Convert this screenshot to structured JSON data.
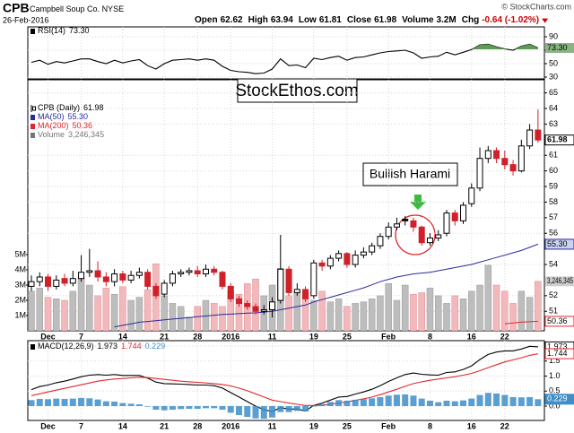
{
  "header": {
    "symbol": "CPB",
    "name": "Campbell Soup Co.",
    "exchange": "NYSE",
    "date": "26-Feb-2016",
    "credit": "© StockCharts.com",
    "quote": [
      {
        "label": "Open",
        "value": 62.62
      },
      {
        "label": "High",
        "value": 63.94
      },
      {
        "label": "Low",
        "value": 61.81
      },
      {
        "label": "Close",
        "value": 61.98
      },
      {
        "label": "Volume",
        "value": 3200000,
        "value_label": "3.2M"
      },
      {
        "label": "Chg",
        "value": -0.64,
        "value_label": "-0.64 (-1.02%)"
      }
    ]
  },
  "chart_data": [
    {
      "type": "line",
      "ylim": [
        27.33,
        104.67
      ],
      "yticks": [
        90,
        70,
        50,
        30
      ],
      "grid": true,
      "series": [
        {
          "name": "RSI(14)",
          "color": "#000000",
          "fill_color": "#5c9a55",
          "last_value_label": "73.30",
          "values": [
            52,
            55,
            49,
            53,
            51,
            54,
            57,
            57,
            53,
            50,
            55,
            51,
            54,
            56,
            47,
            42,
            50,
            55,
            56,
            57,
            55,
            57,
            55,
            46,
            40,
            38,
            37,
            35,
            36,
            42,
            57,
            47,
            48,
            44,
            58,
            56,
            59,
            61,
            55,
            59,
            60,
            63,
            66,
            68,
            69,
            70,
            66,
            58,
            60,
            61,
            67,
            63,
            67,
            71,
            78,
            79,
            75,
            72,
            70,
            76,
            79,
            73.3
          ]
        }
      ]
    },
    {
      "type": "candlestick",
      "name": "CPB (Daily)",
      "ylim": [
        49.75,
        65.84
      ],
      "yticks": [
        65,
        64,
        63,
        61,
        60,
        59,
        58,
        57,
        56,
        54,
        52,
        51
      ],
      "grid": true,
      "categories": [
        null,
        null,
        "Dec",
        null,
        null,
        null,
        "7",
        null,
        null,
        null,
        null,
        "14",
        null,
        null,
        null,
        null,
        "21",
        null,
        null,
        null,
        "28",
        null,
        null,
        null,
        "2016",
        null,
        null,
        null,
        null,
        "11",
        null,
        null,
        null,
        null,
        "19",
        null,
        null,
        null,
        "25",
        null,
        null,
        null,
        null,
        "Feb",
        null,
        null,
        null,
        null,
        "8",
        null,
        null,
        null,
        null,
        "16",
        null,
        null,
        null,
        "22",
        null,
        null,
        null,
        null
      ],
      "open": [
        52.6,
        52.9,
        53.2,
        52.6,
        53.1,
        52.8,
        53.1,
        53.5,
        53.6,
        53.2,
        52.9,
        53.4,
        53.0,
        53.3,
        53.5,
        52.6,
        52.1,
        52.8,
        53.4,
        53.5,
        53.6,
        53.4,
        53.7,
        53.5,
        52.6,
        51.8,
        51.5,
        51.3,
        51.0,
        51.1,
        51.7,
        53.7,
        52.2,
        52.4,
        52.0,
        54.1,
        53.9,
        54.4,
        54.7,
        54.0,
        54.6,
        54.8,
        55.2,
        55.8,
        56.4,
        56.9,
        56.8,
        56.4,
        55.4,
        55.7,
        56.0,
        57.3,
        56.8,
        57.9,
        58.9,
        60.8,
        61.3,
        60.8,
        60.4,
        60.0,
        61.6,
        62.62
      ],
      "high": [
        53.3,
        53.5,
        53.4,
        53.3,
        53.4,
        53.6,
        54.6,
        55.0,
        54.2,
        53.5,
        53.7,
        53.6,
        53.6,
        53.8,
        53.7,
        52.8,
        53.0,
        53.6,
        53.7,
        53.8,
        53.9,
        54.0,
        53.9,
        53.6,
        52.8,
        52.0,
        51.7,
        51.5,
        51.4,
        51.9,
        55.9,
        53.9,
        52.8,
        52.6,
        54.3,
        54.3,
        54.6,
        54.9,
        54.8,
        54.9,
        55.1,
        55.4,
        56.0,
        56.7,
        57.0,
        57.1,
        57.0,
        56.5,
        56.0,
        56.2,
        57.5,
        57.5,
        58.0,
        59.2,
        61.5,
        61.6,
        61.5,
        61.3,
        60.7,
        62.0,
        63.0,
        63.94
      ],
      "low": [
        52.3,
        52.6,
        52.3,
        52.4,
        52.6,
        52.6,
        52.9,
        53.2,
        52.9,
        52.6,
        52.6,
        52.8,
        52.8,
        53.1,
        52.4,
        51.8,
        51.9,
        52.6,
        53.2,
        53.3,
        53.2,
        53.2,
        53.3,
        52.4,
        51.6,
        51.3,
        51.1,
        50.8,
        50.8,
        50.6,
        51.5,
        52.0,
        52.0,
        51.6,
        51.8,
        53.6,
        53.7,
        54.2,
        53.8,
        53.8,
        54.4,
        54.6,
        55.0,
        55.6,
        56.2,
        56.5,
        56.1,
        55.2,
        55.2,
        55.5,
        55.8,
        56.5,
        56.6,
        57.7,
        58.7,
        60.5,
        60.5,
        60.1,
        59.7,
        59.9,
        61.4,
        61.81
      ],
      "close": [
        52.9,
        53.2,
        52.6,
        53.0,
        52.8,
        53.1,
        53.5,
        53.6,
        53.2,
        52.9,
        53.4,
        53.0,
        53.3,
        53.5,
        52.6,
        52.0,
        52.8,
        53.4,
        53.5,
        53.6,
        53.4,
        53.7,
        53.5,
        52.6,
        51.8,
        51.5,
        51.3,
        51.0,
        51.1,
        51.6,
        53.7,
        52.2,
        52.4,
        51.8,
        54.1,
        53.9,
        54.4,
        54.7,
        54.0,
        54.6,
        54.8,
        55.2,
        55.8,
        56.4,
        56.6,
        56.8,
        56.4,
        55.4,
        55.7,
        55.9,
        57.3,
        56.8,
        57.8,
        58.9,
        60.8,
        61.3,
        60.8,
        60.4,
        60.0,
        61.6,
        62.62,
        61.98
      ],
      "series": [
        {
          "name": "MA(50)",
          "color": "#2b2b9c",
          "last_value_label": "55.30",
          "values": [
            null,
            null,
            null,
            null,
            null,
            null,
            null,
            null,
            null,
            null,
            50.0,
            50.1,
            50.2,
            50.3,
            50.35,
            50.4,
            50.45,
            50.5,
            50.55,
            50.6,
            50.65,
            50.7,
            50.75,
            50.8,
            50.82,
            50.85,
            50.88,
            50.9,
            50.95,
            51.0,
            51.1,
            51.2,
            51.3,
            51.4,
            51.6,
            51.75,
            51.9,
            52.05,
            52.2,
            52.35,
            52.5,
            52.7,
            52.9,
            53.05,
            53.2,
            53.3,
            53.4,
            53.45,
            53.5,
            53.6,
            53.7,
            53.8,
            53.9,
            54.0,
            54.15,
            54.3,
            54.45,
            54.6,
            54.75,
            54.9,
            55.1,
            55.3
          ]
        },
        {
          "name": "MA(200)",
          "color": "#e3262e",
          "last_value_label": "50.36",
          "values": [
            null,
            null,
            null,
            null,
            null,
            null,
            null,
            null,
            null,
            null,
            null,
            null,
            null,
            null,
            null,
            null,
            null,
            null,
            null,
            null,
            null,
            null,
            null,
            null,
            null,
            null,
            null,
            null,
            null,
            null,
            null,
            null,
            null,
            null,
            null,
            null,
            null,
            null,
            null,
            null,
            null,
            null,
            null,
            null,
            null,
            null,
            null,
            null,
            null,
            null,
            null,
            null,
            null,
            null,
            null,
            null,
            null,
            50.2,
            50.25,
            50.3,
            50.33,
            50.36
          ]
        }
      ],
      "volume": {
        "name": "Volume",
        "last_value_label": "3,246,345",
        "vlim": [
          0,
          16470000
        ],
        "vticks": [
          {
            "value": 1000000,
            "label": "1M"
          },
          {
            "value": 2000000,
            "label": "2M"
          },
          {
            "value": 3000000,
            "label": "3M"
          },
          {
            "value": 4000000,
            "label": "4M"
          },
          {
            "value": 5000000,
            "label": "5M"
          }
        ],
        "values": [
          2600000,
          2800000,
          2200000,
          2100000,
          2000000,
          2600000,
          3500000,
          3000000,
          2300000,
          2800000,
          2400000,
          2900000,
          2000000,
          2200000,
          2700000,
          4400000,
          2300000,
          1800000,
          1600000,
          900000,
          1600000,
          2000000,
          1800000,
          1600000,
          2600000,
          2400000,
          3100000,
          3400000,
          2300000,
          3000000,
          4100000,
          2300000,
          2600000,
          2500000,
          2000000,
          2600000,
          1900000,
          2100000,
          1600000,
          1800000,
          1900000,
          2100000,
          2300000,
          3100000,
          2000000,
          3000000,
          2400000,
          2500000,
          2800000,
          2300000,
          1800000,
          2300000,
          2100000,
          2600000,
          3000000,
          4300000,
          3000000,
          2600000,
          1800000,
          2600000,
          2200000,
          3246345
        ]
      },
      "annotations": [
        "StockEthos.com",
        "Bullish Harami"
      ]
    },
    {
      "type": "line",
      "ylim": [
        -0.478,
        2.179
      ],
      "grid": true,
      "yticks": [
        {
          "value": 0,
          "label": "0.0"
        },
        0.5,
        {
          "value": 1,
          "label": "1.0"
        },
        1.5,
        {
          "value": 2,
          "label": "2.0"
        }
      ],
      "series": [
        {
          "name": "MACD(12,26,9)",
          "color": "#000000",
          "values": [
            0.55,
            0.65,
            0.7,
            0.78,
            0.83,
            0.9,
            0.98,
            1.03,
            1.05,
            1.03,
            1.05,
            1.02,
            1.02,
            1.02,
            0.93,
            0.8,
            0.75,
            0.74,
            0.73,
            0.72,
            0.7,
            0.7,
            0.68,
            0.6,
            0.45,
            0.3,
            0.15,
            0.0,
            -0.12,
            -0.18,
            -0.05,
            -0.1,
            -0.1,
            -0.16,
            0.02,
            0.1,
            0.2,
            0.3,
            0.32,
            0.4,
            0.47,
            0.56,
            0.68,
            0.82,
            0.94,
            1.05,
            1.1,
            1.06,
            1.04,
            1.03,
            1.12,
            1.14,
            1.22,
            1.34,
            1.55,
            1.72,
            1.8,
            1.84,
            1.84,
            1.9,
            1.99,
            1.973
          ]
        },
        {
          "color": "#e3262e",
          "values": [
            0.35,
            0.41,
            0.47,
            0.53,
            0.59,
            0.65,
            0.71,
            0.77,
            0.83,
            0.87,
            0.9,
            0.92,
            0.94,
            0.96,
            0.95,
            0.92,
            0.89,
            0.86,
            0.83,
            0.81,
            0.79,
            0.77,
            0.75,
            0.72,
            0.67,
            0.6,
            0.51,
            0.41,
            0.3,
            0.2,
            0.15,
            0.1,
            0.06,
            0.02,
            0.02,
            0.03,
            0.06,
            0.1,
            0.14,
            0.19,
            0.24,
            0.3,
            0.38,
            0.47,
            0.56,
            0.66,
            0.75,
            0.81,
            0.86,
            0.9,
            0.94,
            0.98,
            1.03,
            1.09,
            1.18,
            1.28,
            1.38,
            1.47,
            1.54,
            1.61,
            1.69,
            1.744
          ]
        },
        {
          "type": "bar",
          "color": "#3d8ec9",
          "values": [
            0.2,
            0.24,
            0.23,
            0.25,
            0.24,
            0.25,
            0.27,
            0.26,
            0.22,
            0.16,
            0.15,
            0.1,
            0.08,
            0.06,
            -0.02,
            -0.12,
            -0.14,
            -0.12,
            -0.1,
            -0.09,
            -0.09,
            -0.07,
            -0.07,
            -0.12,
            -0.22,
            -0.3,
            -0.36,
            -0.41,
            -0.42,
            -0.38,
            -0.2,
            -0.2,
            -0.16,
            -0.18,
            0.0,
            0.07,
            0.14,
            0.2,
            0.18,
            0.21,
            0.23,
            0.26,
            0.3,
            0.35,
            0.38,
            0.39,
            0.35,
            0.25,
            0.18,
            0.13,
            0.18,
            0.16,
            0.19,
            0.25,
            0.37,
            0.44,
            0.42,
            0.37,
            0.3,
            0.29,
            0.3,
            0.229
          ]
        }
      ]
    }
  ]
}
